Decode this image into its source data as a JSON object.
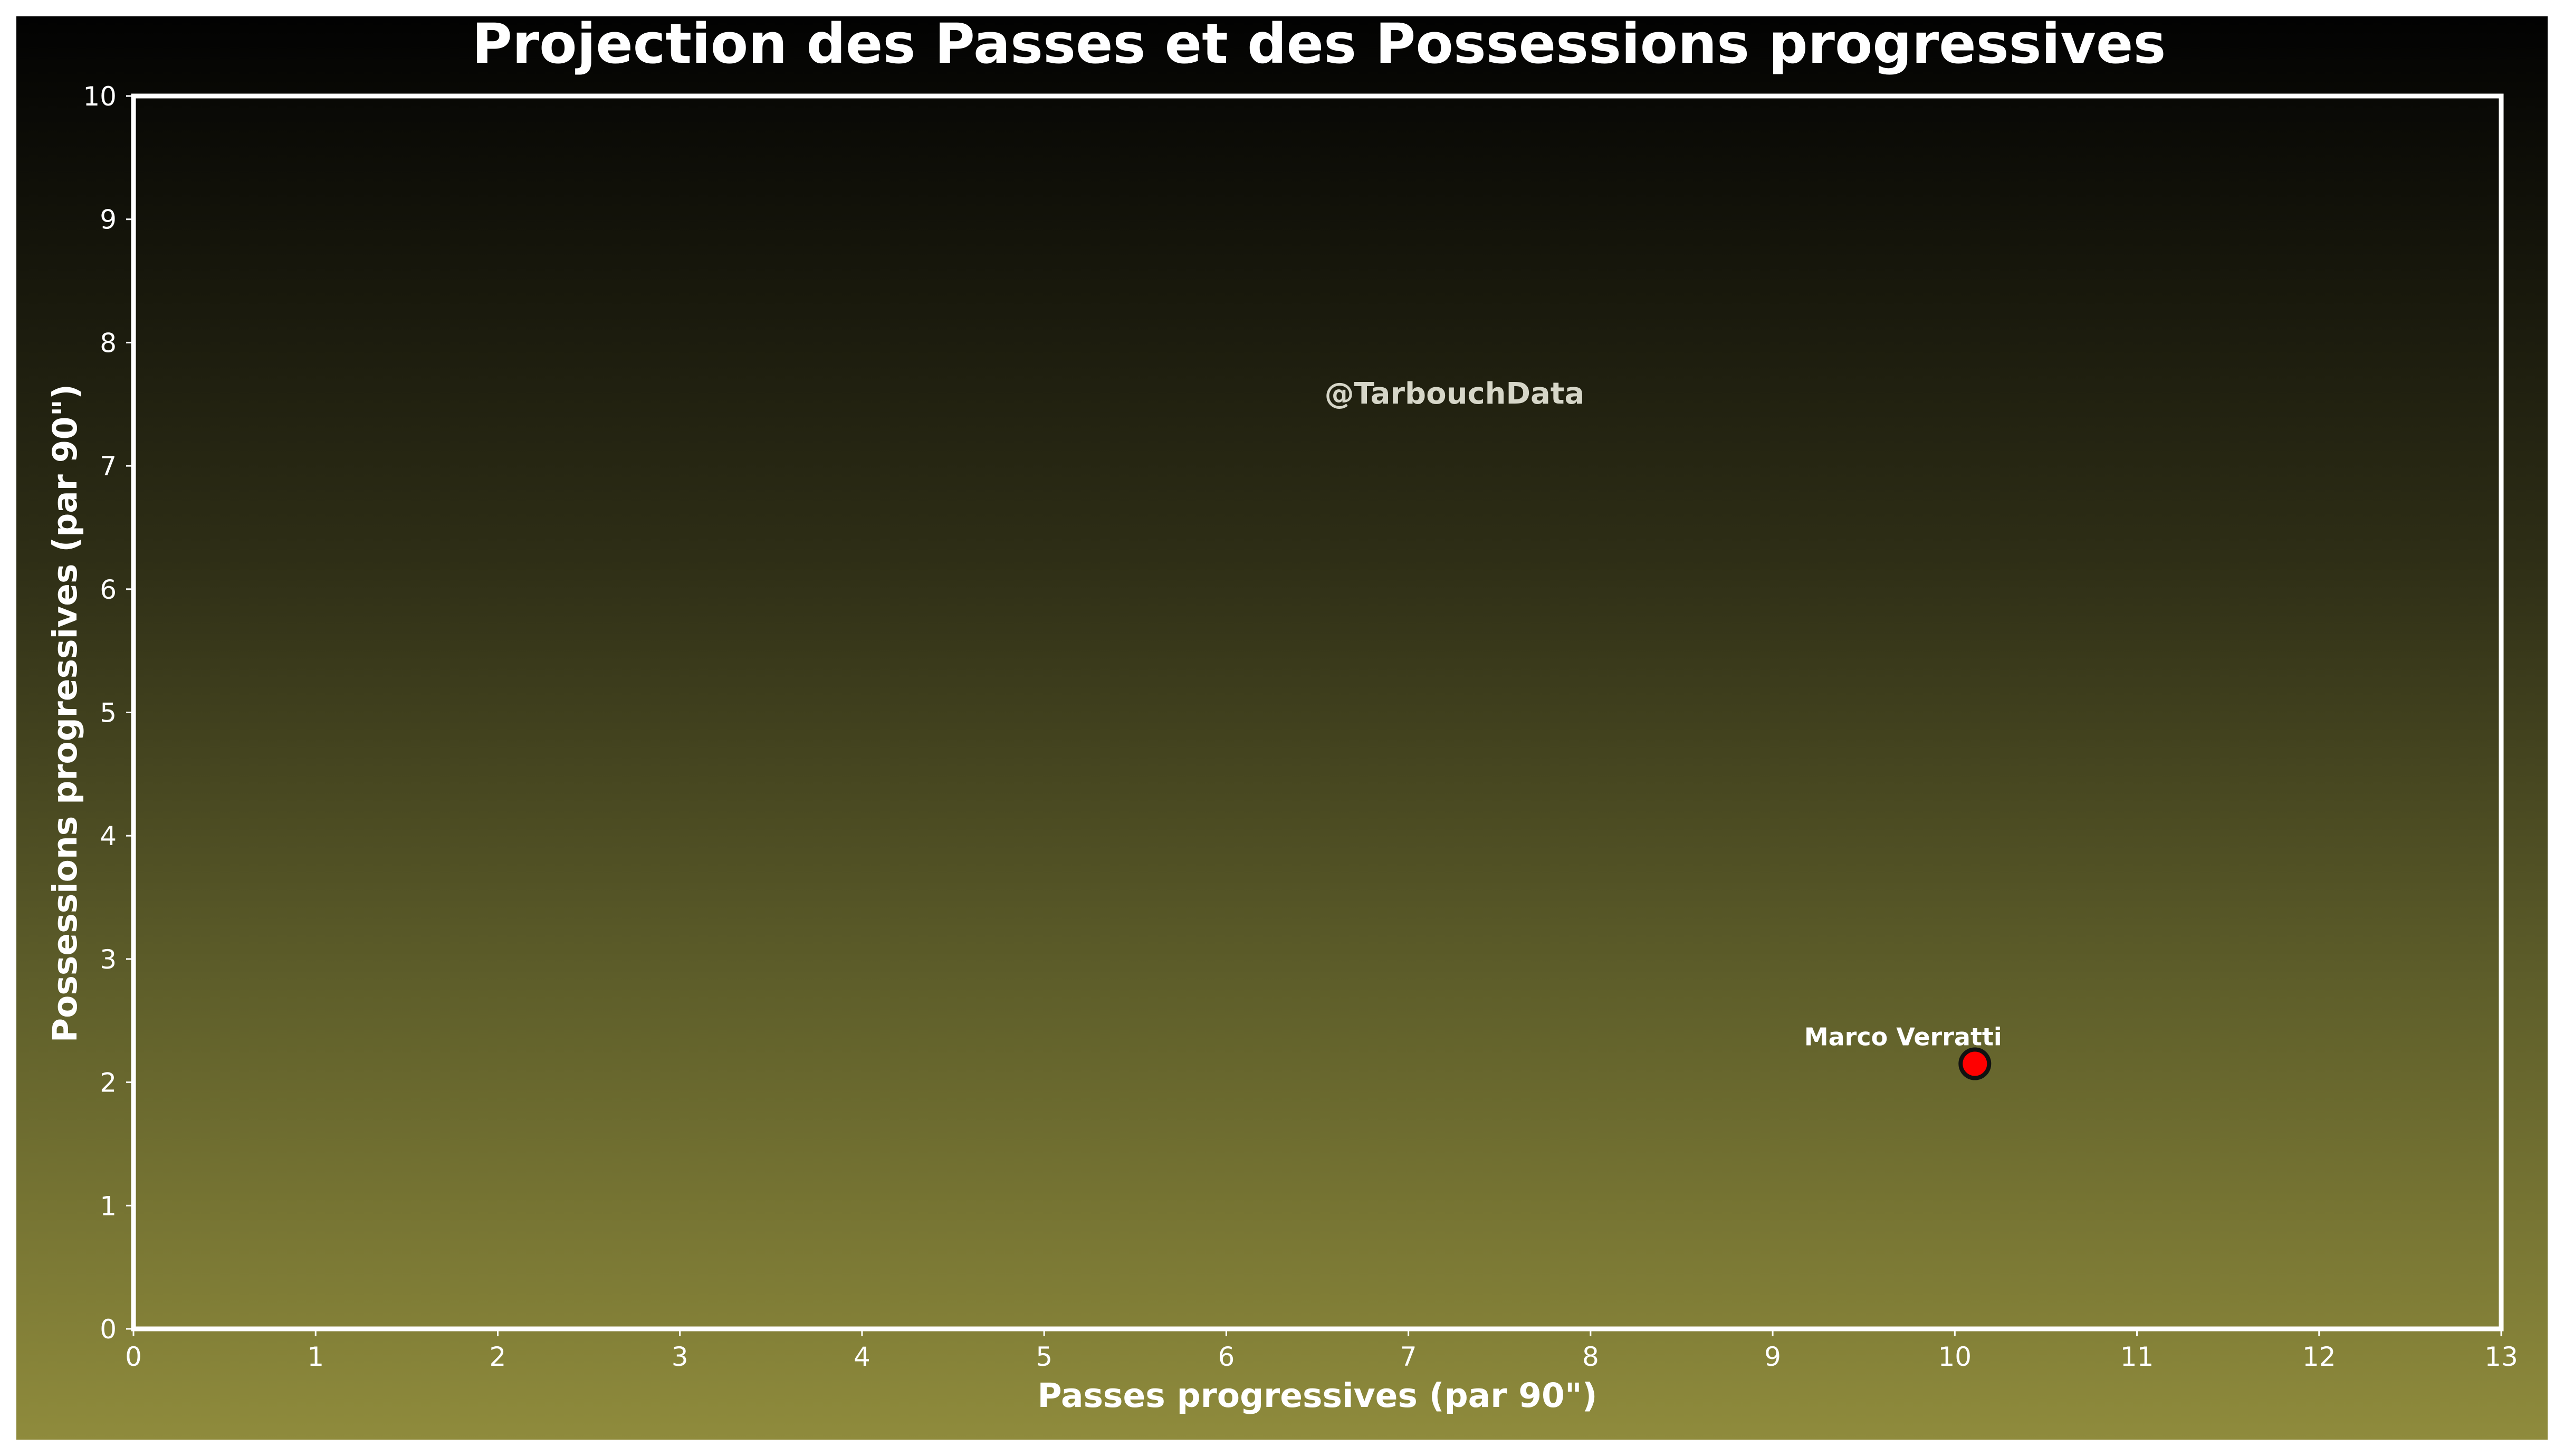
{
  "chart_data": {
    "type": "scatter",
    "title": "Projection des Passes et des Possessions progressives",
    "xlabel": "Passes progressives (par 90\")",
    "ylabel": "Possessions progressives (par 90\")",
    "xlim": [
      0,
      13
    ],
    "ylim": [
      0,
      10
    ],
    "xticks": [
      "0",
      "1",
      "2",
      "3",
      "4",
      "5",
      "6",
      "7",
      "8",
      "9",
      "10",
      "11",
      "12",
      "13"
    ],
    "yticks": [
      "0",
      "1",
      "2",
      "3",
      "4",
      "5",
      "6",
      "7",
      "8",
      "9",
      "10"
    ],
    "grid": false,
    "watermark": "@TarbouchData",
    "points": [
      {
        "label": "Marco Verratti",
        "x": 10.11,
        "y": 2.15,
        "color": "#ff0000"
      }
    ]
  },
  "colors": {
    "background_top": "#020202",
    "background_bottom": "#8f8b3c",
    "frame": "#ffffff",
    "text": "#ffffff",
    "marker_fill": "#ff0000",
    "marker_edge": "#111111"
  }
}
